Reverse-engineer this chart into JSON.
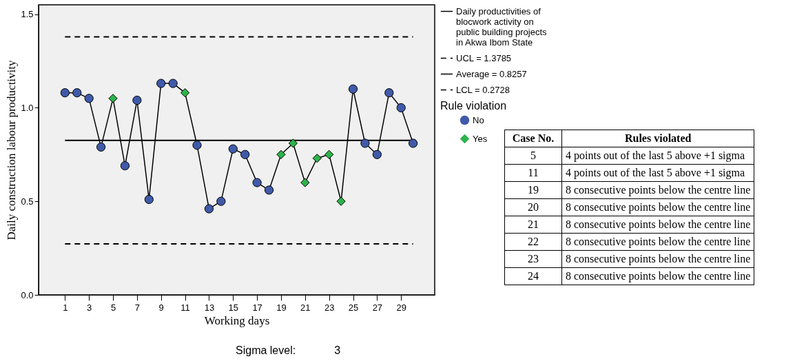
{
  "chart_data": {
    "type": "line",
    "xlabel": "Working days",
    "ylabel": "Daily construction labour productivity",
    "x": [
      1,
      2,
      3,
      4,
      5,
      6,
      7,
      8,
      9,
      10,
      11,
      12,
      13,
      14,
      15,
      16,
      17,
      18,
      19,
      20,
      21,
      22,
      23,
      24,
      25,
      26,
      27,
      28,
      29,
      30
    ],
    "xlim": [
      -1.2,
      31.8
    ],
    "xticks": [
      1,
      3,
      5,
      7,
      9,
      11,
      13,
      15,
      17,
      19,
      21,
      23,
      25,
      27,
      29
    ],
    "ylim": [
      0,
      1.55
    ],
    "yticks": [
      {
        "value": 0,
        "label": "0.0"
      },
      {
        "value": 0.5,
        "label": "0.5"
      },
      {
        "value": 1,
        "label": "1.0"
      },
      {
        "value": 1.5,
        "label": "1.5"
      }
    ],
    "series": [
      {
        "name": "Daily productivities of blocwork activity on public building projects in Akwa Ibom State",
        "color": "#000000",
        "marker": "none",
        "values": [
          1.08,
          1.08,
          1.05,
          0.79,
          1.05,
          0.69,
          1.04,
          0.51,
          1.13,
          1.13,
          1.08,
          0.8,
          0.46,
          0.5,
          0.78,
          0.75,
          0.6,
          0.56,
          0.75,
          0.81,
          0.6,
          0.73,
          0.75,
          0.5,
          1.1,
          0.81,
          0.75,
          1.08,
          1.0,
          0.81
        ]
      },
      {
        "name": "No",
        "type": "scatter",
        "color": "#3f5aa8",
        "marker": "circle",
        "values": [
          1.08,
          1.08,
          1.05,
          0.79,
          null,
          0.69,
          1.04,
          0.51,
          1.13,
          1.13,
          null,
          0.8,
          0.46,
          0.5,
          0.78,
          0.75,
          0.6,
          0.56,
          null,
          null,
          null,
          null,
          null,
          null,
          1.1,
          0.81,
          0.75,
          1.08,
          1.0,
          0.81
        ]
      },
      {
        "name": "Yes",
        "type": "scatter",
        "color": "#2db34a",
        "marker": "diamond",
        "values": [
          null,
          null,
          null,
          null,
          1.05,
          null,
          null,
          null,
          null,
          null,
          1.08,
          null,
          null,
          null,
          null,
          null,
          null,
          null,
          0.75,
          0.81,
          0.6,
          0.73,
          0.75,
          0.5,
          null,
          null,
          null,
          null,
          null,
          null
        ]
      }
    ],
    "ref_lines": [
      {
        "axis": "y",
        "value": 1.3785,
        "label": "UCL = 1.3785",
        "color": "#000000",
        "line_style": "dashed"
      },
      {
        "axis": "y",
        "value": 0.8257,
        "label": "Average = 0.8257",
        "color": "#000000",
        "line_style": "solid"
      },
      {
        "axis": "y",
        "value": 0.2728,
        "label": "LCL = 0.2728",
        "color": "#000000",
        "line_style": "dashed"
      }
    ],
    "legend": "right",
    "legend_title": "Rule violation",
    "annotations": [
      "Sigma level:",
      "3",
      "Case No.",
      "Rules violated",
      "5",
      "4 points out of the last 5 above +1 sigma",
      "11",
      "4 points out of the last 5 above +1 sigma",
      "19",
      "8 consecutive points below  the centre line",
      "20",
      "8 consecutive points below  the centre line",
      "21",
      "8 consecutive points below  the centre line",
      "22",
      "8 consecutive points below  the centre line",
      "23",
      "8 consecutive points below  the centre line",
      "24",
      "8 consecutive points below  the centre line"
    ]
  }
}
